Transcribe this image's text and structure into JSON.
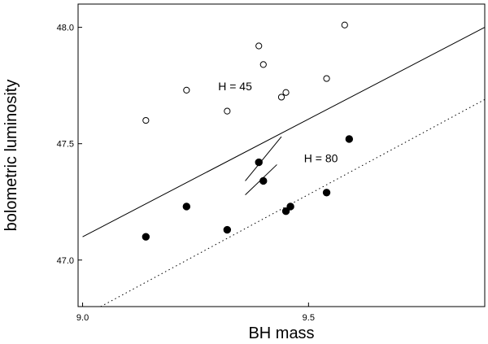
{
  "chart_data": {
    "type": "scatter",
    "title": "",
    "xlabel": "BH mass",
    "ylabel": "bolometric luminosity",
    "xlim": [
      8.99,
      9.89
    ],
    "ylim": [
      46.8,
      48.1
    ],
    "xticks": [
      {
        "value": 9.0,
        "label": "9.0"
      },
      {
        "value": 9.5,
        "label": "9.5"
      }
    ],
    "yticks": [
      {
        "value": 47.0,
        "label": "47.0"
      },
      {
        "value": 47.5,
        "label": "47.5"
      },
      {
        "value": 48.0,
        "label": "48.0"
      }
    ],
    "grid": false,
    "legend": "none",
    "series": [
      {
        "marker": "open-circle",
        "points": [
          {
            "x": 9.14,
            "y": 47.6
          },
          {
            "x": 9.23,
            "y": 47.73
          },
          {
            "x": 9.32,
            "y": 47.64
          },
          {
            "x": 9.39,
            "y": 47.92
          },
          {
            "x": 9.4,
            "y": 47.84
          },
          {
            "x": 9.44,
            "y": 47.7
          },
          {
            "x": 9.45,
            "y": 47.72
          },
          {
            "x": 9.54,
            "y": 47.78
          },
          {
            "x": 9.58,
            "y": 48.01
          }
        ]
      },
      {
        "marker": "filled-circle",
        "points": [
          {
            "x": 9.14,
            "y": 47.1
          },
          {
            "x": 9.23,
            "y": 47.23
          },
          {
            "x": 9.32,
            "y": 47.13
          },
          {
            "x": 9.39,
            "y": 47.42
          },
          {
            "x": 9.4,
            "y": 47.34
          },
          {
            "x": 9.45,
            "y": 47.21
          },
          {
            "x": 9.46,
            "y": 47.23
          },
          {
            "x": 9.54,
            "y": 47.29
          },
          {
            "x": 9.59,
            "y": 47.52
          }
        ]
      }
    ],
    "lines": [
      {
        "style": "solid",
        "points": [
          [
            9.0,
            47.1
          ],
          [
            9.89,
            48.0
          ]
        ]
      },
      {
        "style": "dotted",
        "points": [
          [
            9.04,
            46.8
          ],
          [
            9.89,
            47.69
          ]
        ]
      },
      {
        "style": "solid",
        "points": [
          [
            9.36,
            47.34
          ],
          [
            9.44,
            47.53
          ]
        ]
      },
      {
        "style": "solid",
        "points": [
          [
            9.36,
            47.28
          ],
          [
            9.43,
            47.41
          ]
        ]
      }
    ],
    "annotations": [
      {
        "text": "H = 45",
        "x": 9.3,
        "y": 47.73
      },
      {
        "text": "H = 80",
        "x": 9.49,
        "y": 47.42
      }
    ]
  }
}
